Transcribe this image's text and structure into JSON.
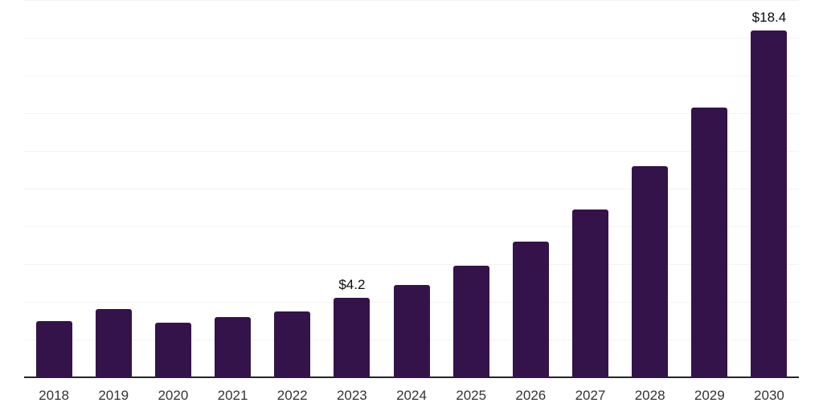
{
  "chart_data": {
    "type": "bar",
    "title": "",
    "xlabel": "",
    "ylabel": "",
    "categories": [
      "2018",
      "2019",
      "2020",
      "2021",
      "2022",
      "2023",
      "2024",
      "2025",
      "2026",
      "2027",
      "2028",
      "2029",
      "2030"
    ],
    "values": [
      3.0,
      3.6,
      2.9,
      3.2,
      3.5,
      4.2,
      4.9,
      5.9,
      7.2,
      8.9,
      11.2,
      14.3,
      18.4
    ],
    "annotations": [
      {
        "category": "2023",
        "text": "$4.2"
      },
      {
        "category": "2030",
        "text": "$18.4"
      }
    ],
    "ylim": [
      0,
      20
    ],
    "gridline_step": 2,
    "grid": true,
    "legend": false,
    "colors": {
      "bar": "#331349",
      "gridline": "#f3f3f3",
      "axis_line": "#262626",
      "tick_label": "#333333",
      "data_label": "#0a0a0a",
      "background": "#ffffff"
    }
  }
}
